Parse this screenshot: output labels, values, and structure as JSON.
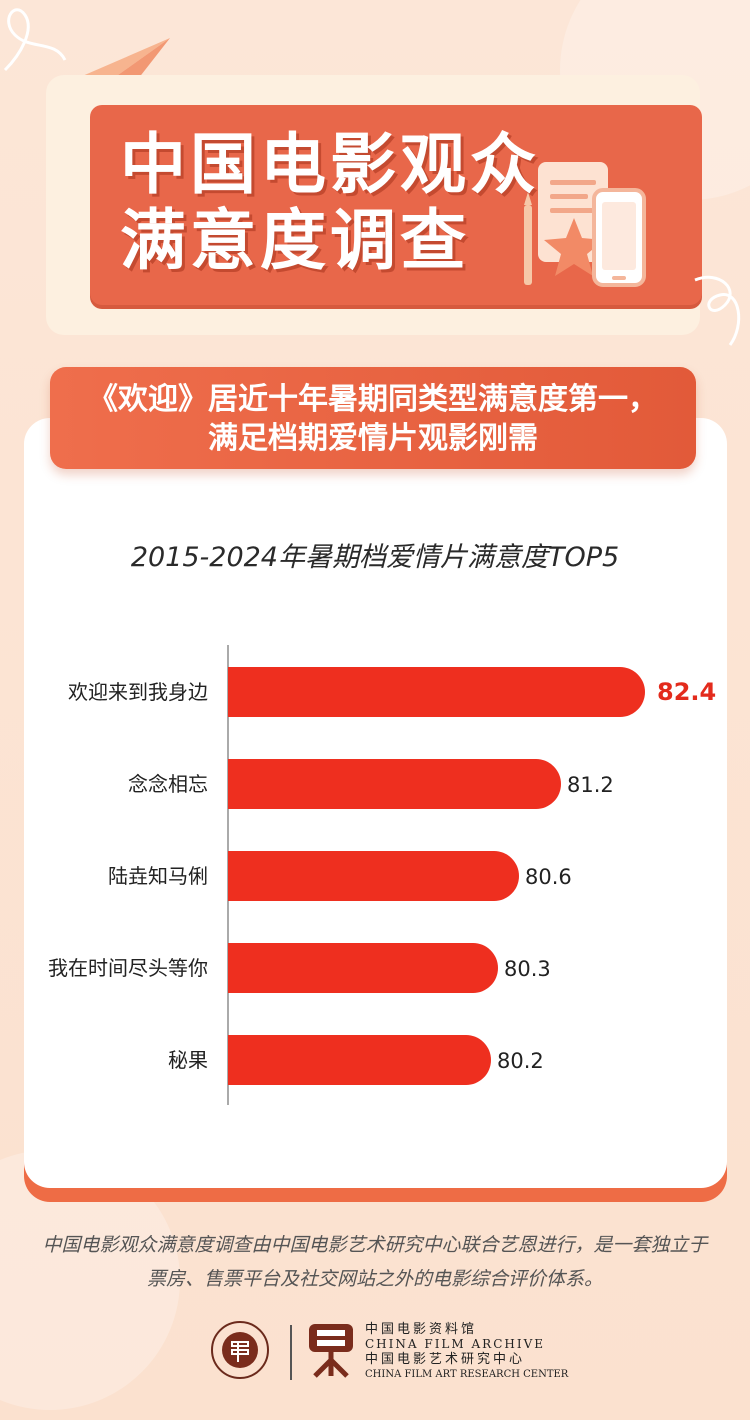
{
  "header": {
    "title_line1": "中国电影观众",
    "title_line2": "满意度调查"
  },
  "headline": {
    "line1": "《欢迎》居近十年暑期同类型满意度第一，",
    "line2": "满足档期爱情片观影刚需"
  },
  "chart_data": {
    "type": "bar",
    "orientation": "horizontal",
    "title": "2015-2024年暑期档爱情片满意度TOP5",
    "categories": [
      "欢迎来到我身边",
      "念念相忘",
      "陆垚知马俐",
      "我在时间尽头等你",
      "秘果"
    ],
    "values": [
      82.4,
      81.2,
      80.6,
      80.3,
      80.2
    ],
    "value_labels": [
      "82.4",
      "81.2",
      "80.6",
      "80.3",
      "80.2"
    ],
    "highlight_index": 0,
    "colors": {
      "bar": "#ee2f1f",
      "highlight_label": "#e32b1c",
      "label": "#222222"
    }
  },
  "footer": {
    "note": "中国电影观众满意度调查由中国电影艺术研究中心联合艺恩进行，是一套独立于票房、售票平台及社交网站之外的电影综合评价体系。",
    "org_cn1": "中国电影资料馆",
    "org_en1": "CHINA FILM ARCHIVE",
    "org_cn2": "中国电影艺术研究中心",
    "org_en2": "CHINA FILM ART RESEARCH CENTER"
  },
  "colors": {
    "accent": "#e8674a",
    "background": "#fbe3d3"
  }
}
